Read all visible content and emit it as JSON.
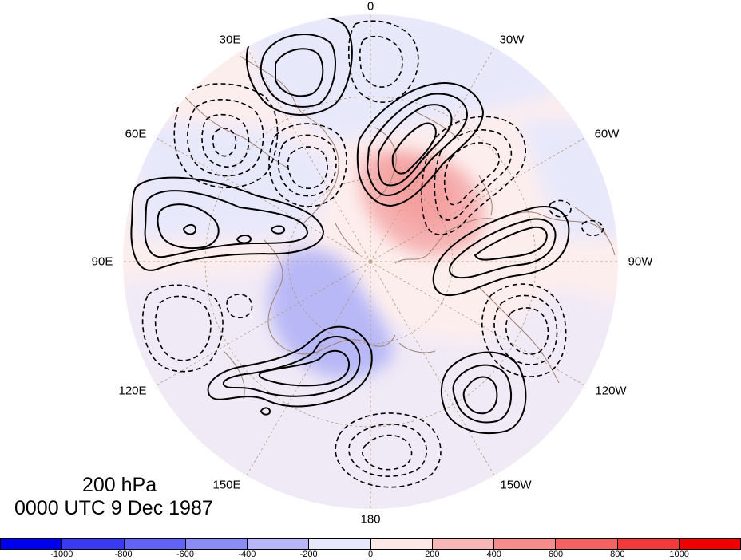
{
  "title": {
    "level": "200 hPa",
    "time": "0000 UTC 9 Dec 1987"
  },
  "longitude_labels": [
    "0",
    "30W",
    "60W",
    "90W",
    "120W",
    "150W",
    "180",
    "150E",
    "120E",
    "90E",
    "60E",
    "30E"
  ],
  "colorbar": {
    "colors": [
      "#0000f0",
      "#3a3af2",
      "#6262f4",
      "#8c8cf6",
      "#b6b6f8",
      "#e8e8fb",
      "#fde8e8",
      "#f8b6b6",
      "#f68c8c",
      "#f46262",
      "#f23a3a",
      "#f00000"
    ],
    "labels": [
      "-1000",
      "-800",
      "-600",
      "-400",
      "-200",
      "0",
      "200",
      "400",
      "600",
      "800",
      "1000"
    ]
  },
  "colors": {
    "coastline": "#a08070",
    "gridline": "#b09070",
    "contour": "#000000"
  }
}
